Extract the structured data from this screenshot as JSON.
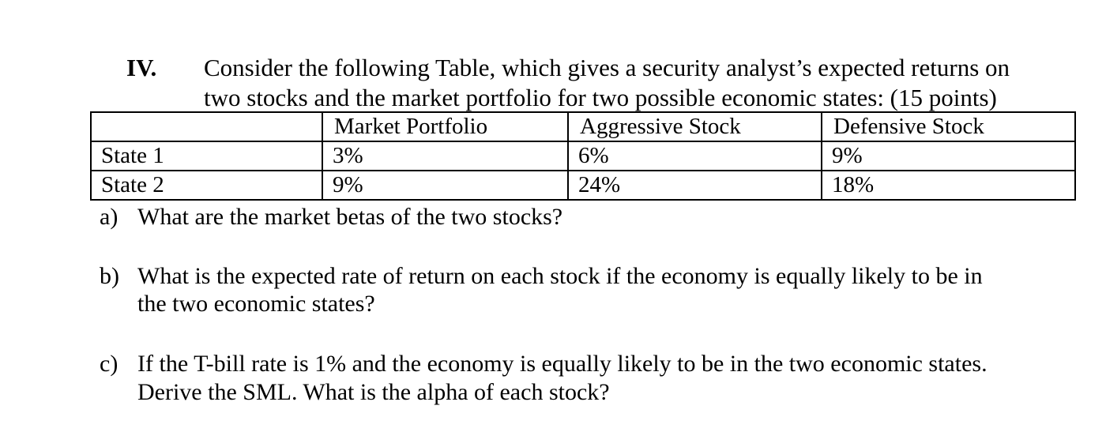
{
  "section_number": "IV.",
  "intro": {
    "line1": "Consider the following Table, which gives a security analyst’s expected returns on",
    "line2": "two stocks and the market portfolio for two possible economic states: (15 points)"
  },
  "table": {
    "headers": [
      "",
      "Market Portfolio",
      "Aggressive Stock",
      "Defensive Stock"
    ],
    "rows": [
      [
        "State 1",
        "3%",
        "6%",
        "9%"
      ],
      [
        "State 2",
        "9%",
        "24%",
        "18%"
      ]
    ]
  },
  "questions": [
    {
      "letter": "a)",
      "lines": [
        "What are the market betas of the two stocks?"
      ]
    },
    {
      "letter": "b)",
      "lines": [
        "What is the expected rate of return on each stock if the economy is equally likely to be in",
        "the two economic states?"
      ]
    },
    {
      "letter": "c)",
      "lines": [
        "If the T-bill rate is 1% and the economy is equally likely to be in the two economic states.",
        "Derive the SML.  What is the alpha of each stock?"
      ]
    }
  ]
}
